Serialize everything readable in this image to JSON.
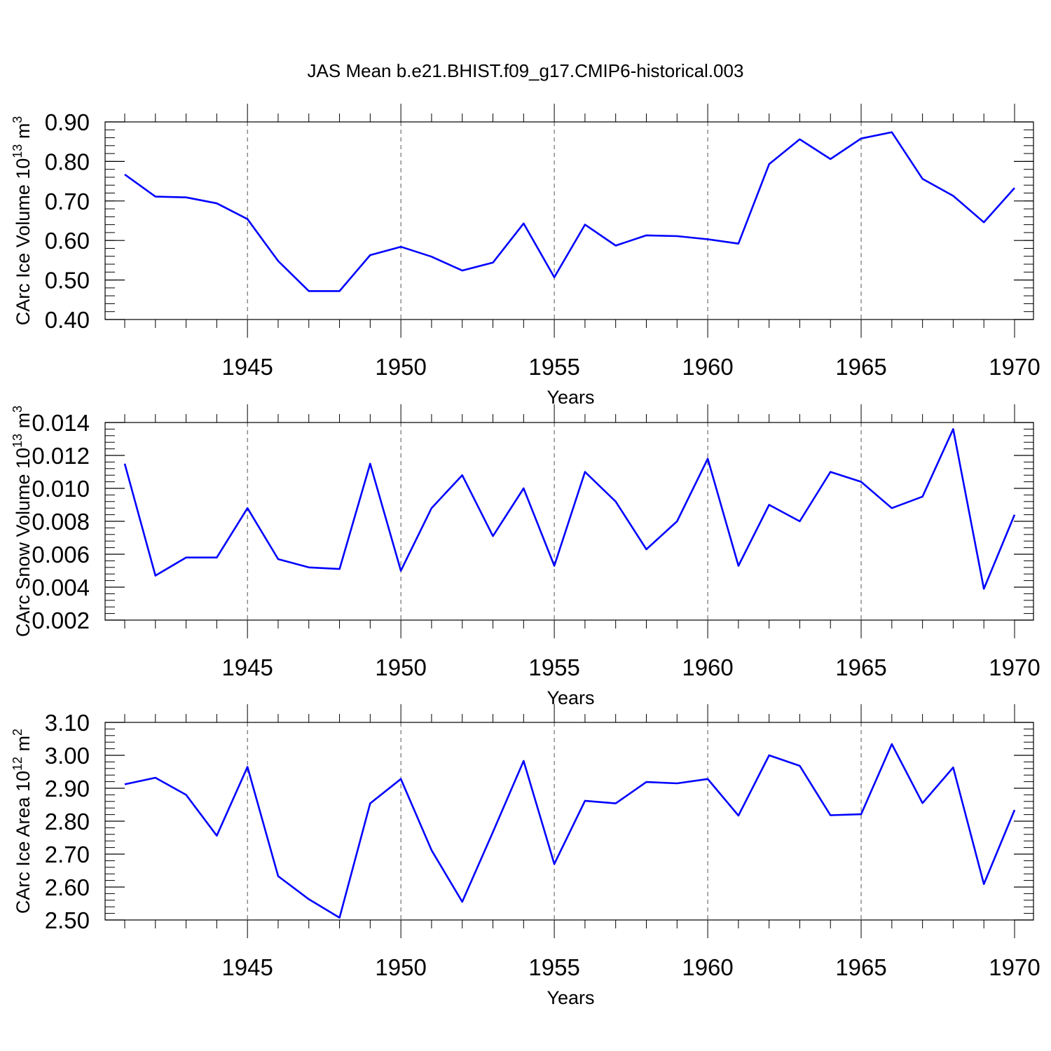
{
  "title": "JAS Mean b.e21.BHIST.f09_g17.CMIP6-historical.003",
  "chart_data": [
    {
      "type": "line",
      "title": "JAS Mean b.e21.BHIST.f09_g17.CMIP6-historical.003",
      "xlabel": "Years",
      "ylabel": "CArc Ice Volume 10",
      "ylabel_exp": "13",
      "ylabel_unit": " m",
      "ylabel_unit_exp": "3",
      "xlim": [
        1941,
        1970
      ],
      "ylim": [
        0.4,
        0.9
      ],
      "x_ticks": [
        1945,
        1950,
        1955,
        1960,
        1965,
        1970
      ],
      "x_tick_labels": [
        "1945",
        "1950",
        "1955",
        "1960",
        "1965",
        "1970"
      ],
      "y_ticks": [
        0.4,
        0.5,
        0.6,
        0.7,
        0.8,
        0.9
      ],
      "y_tick_labels": [
        "0.40",
        "0.50",
        "0.60",
        "0.70",
        "0.80",
        "0.90"
      ],
      "y_minor_step": 0.02,
      "grid": "vertical dashed at major x ticks",
      "line_color": "#0000ff",
      "x": [
        1941,
        1942,
        1943,
        1944,
        1945,
        1946,
        1947,
        1948,
        1949,
        1950,
        1951,
        1952,
        1953,
        1954,
        1955,
        1956,
        1957,
        1958,
        1959,
        1960,
        1961,
        1962,
        1963,
        1964,
        1965,
        1966,
        1967,
        1968,
        1969,
        1970
      ],
      "values": [
        0.767,
        0.711,
        0.709,
        0.694,
        0.654,
        0.548,
        0.472,
        0.472,
        0.563,
        0.584,
        0.559,
        0.524,
        0.544,
        0.643,
        0.507,
        0.64,
        0.587,
        0.613,
        0.611,
        0.603,
        0.592,
        0.793,
        0.856,
        0.806,
        0.858,
        0.874,
        0.756,
        0.713,
        0.646,
        0.733
      ]
    },
    {
      "type": "line",
      "xlabel": "Years",
      "ylabel": "CArc Snow Volume 10",
      "ylabel_exp": "13",
      "ylabel_unit": " m",
      "ylabel_unit_exp": "3",
      "xlim": [
        1941,
        1970
      ],
      "ylim": [
        0.002,
        0.014
      ],
      "x_ticks": [
        1945,
        1950,
        1955,
        1960,
        1965,
        1970
      ],
      "x_tick_labels": [
        "1945",
        "1950",
        "1955",
        "1960",
        "1965",
        "1970"
      ],
      "y_ticks": [
        0.002,
        0.004,
        0.006,
        0.008,
        0.01,
        0.012,
        0.014
      ],
      "y_tick_labels": [
        "0.002",
        "0.004",
        "0.006",
        "0.008",
        "0.010",
        "0.012",
        "0.014"
      ],
      "y_minor_step": 0.0004,
      "grid": "vertical dashed at major x ticks",
      "line_color": "#0000ff",
      "x": [
        1941,
        1942,
        1943,
        1944,
        1945,
        1946,
        1947,
        1948,
        1949,
        1950,
        1951,
        1952,
        1953,
        1954,
        1955,
        1956,
        1957,
        1958,
        1959,
        1960,
        1961,
        1962,
        1963,
        1964,
        1965,
        1966,
        1967,
        1968,
        1969,
        1970
      ],
      "values": [
        0.0115,
        0.0047,
        0.0058,
        0.0058,
        0.0088,
        0.0057,
        0.0052,
        0.0051,
        0.0115,
        0.005,
        0.0088,
        0.0108,
        0.0071,
        0.01,
        0.0053,
        0.011,
        0.0092,
        0.0063,
        0.008,
        0.0118,
        0.0053,
        0.009,
        0.008,
        0.011,
        0.0104,
        0.0088,
        0.0095,
        0.0136,
        0.0039,
        0.0084
      ]
    },
    {
      "type": "line",
      "xlabel": "Years",
      "ylabel": "CArc Ice Area 10",
      "ylabel_exp": "12",
      "ylabel_unit": " m",
      "ylabel_unit_exp": "2",
      "xlim": [
        1941,
        1970
      ],
      "ylim": [
        2.5,
        3.1
      ],
      "x_ticks": [
        1945,
        1950,
        1955,
        1960,
        1965,
        1970
      ],
      "x_tick_labels": [
        "1945",
        "1950",
        "1955",
        "1960",
        "1965",
        "1970"
      ],
      "y_ticks": [
        2.5,
        2.6,
        2.7,
        2.8,
        2.9,
        3.0,
        3.1
      ],
      "y_tick_labels": [
        "2.50",
        "2.60",
        "2.70",
        "2.80",
        "2.90",
        "3.00",
        "3.10"
      ],
      "y_minor_step": 0.02,
      "grid": "vertical dashed at major x ticks",
      "line_color": "#0000ff",
      "x": [
        1941,
        1942,
        1943,
        1944,
        1945,
        1946,
        1947,
        1948,
        1949,
        1950,
        1951,
        1952,
        1953,
        1954,
        1955,
        1956,
        1957,
        1958,
        1959,
        1960,
        1961,
        1962,
        1963,
        1964,
        1965,
        1966,
        1967,
        1968,
        1969,
        1970
      ],
      "values": [
        2.912,
        2.932,
        2.88,
        2.756,
        2.965,
        2.633,
        2.563,
        2.507,
        2.854,
        2.928,
        2.712,
        2.555,
        2.767,
        2.983,
        2.67,
        2.862,
        2.854,
        2.919,
        2.915,
        2.928,
        2.817,
        3.0,
        2.968,
        2.818,
        2.821,
        3.034,
        2.855,
        2.963,
        2.609,
        2.834
      ]
    }
  ]
}
